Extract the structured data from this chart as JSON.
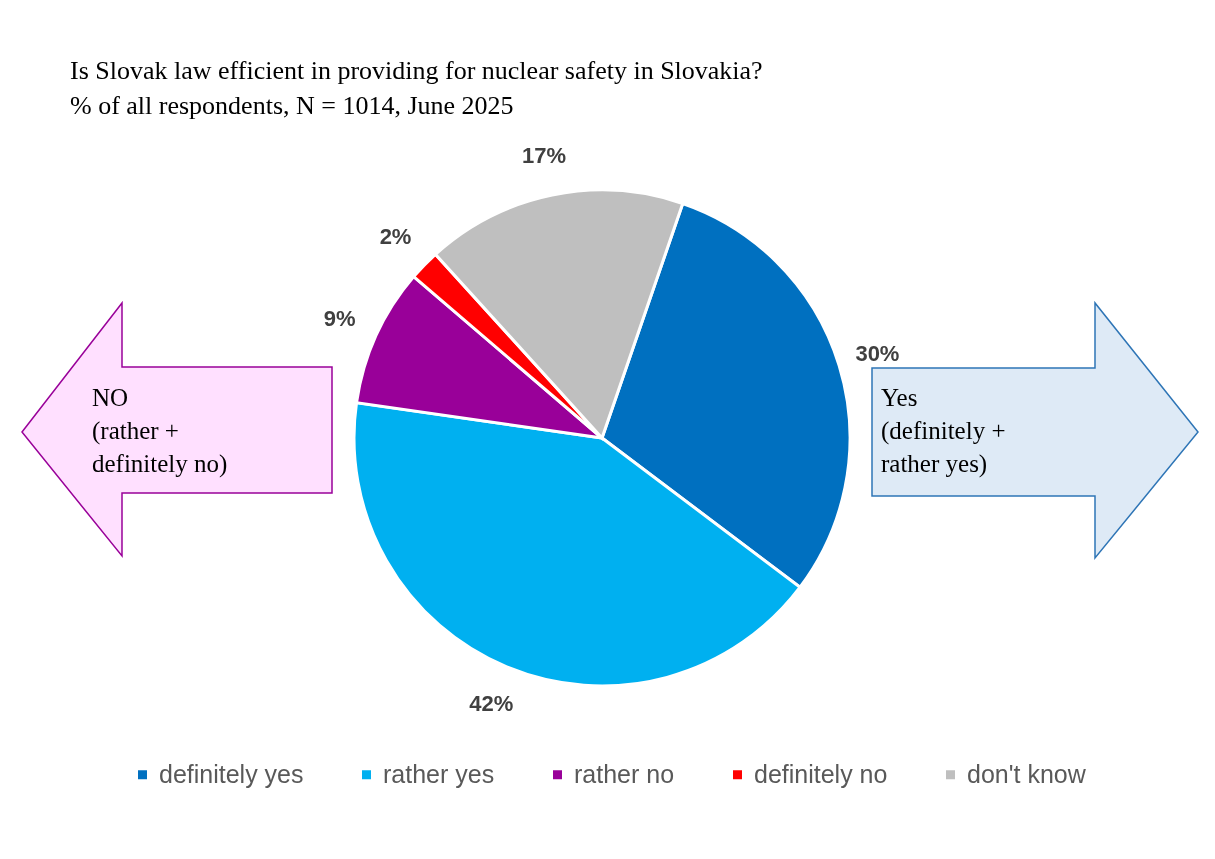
{
  "chart_data": {
    "type": "pie",
    "title": "Is Slovak law efficient in providing for nuclear safety in Slovakia?",
    "subtitle": "% of all respondents, N = 1014, June 2025",
    "categories": [
      "definitely yes",
      "rather yes",
      "rather no",
      "definitely no",
      "don't know"
    ],
    "values": [
      30,
      42,
      9,
      2,
      17
    ],
    "colors": [
      "#0070c0",
      "#00b0f0",
      "#990099",
      "#ff0000",
      "#bfbfbf"
    ],
    "value_labels": [
      "30%",
      "42%",
      "9%",
      "2%",
      "17%"
    ],
    "legend": "bottom",
    "annotations": [
      "NO (rather + definitely no)",
      "Yes (definitely + rather yes)"
    ]
  }
}
